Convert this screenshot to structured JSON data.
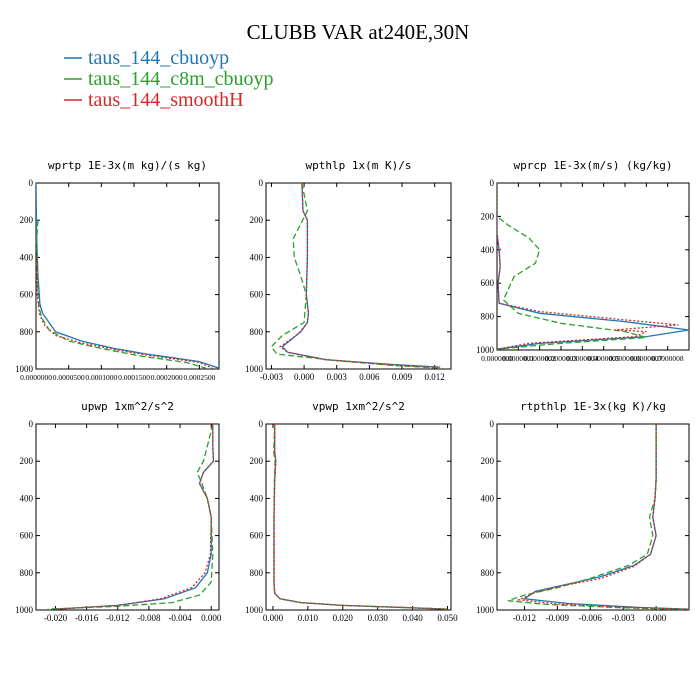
{
  "figure": {
    "title": "CLUBB VAR at240E,30N",
    "legend": [
      {
        "label": "taus_144_cbuoyp",
        "color": "#1f77b4"
      },
      {
        "label": "taus_144_c8m_cbuoyp",
        "color": "#2ca02c"
      },
      {
        "label": "taus_144_smoothH",
        "color": "#d62728"
      }
    ]
  },
  "chart_data": [
    {
      "type": "line",
      "title": "wprtp  1E-3x(m kg)/(s kg)",
      "xlim": [
        0,
        0.00028
      ],
      "ylim": [
        1000,
        0
      ],
      "yticks": [
        "0",
        "200",
        "400",
        "600",
        "800",
        "1000"
      ],
      "yticks_values": [
        0,
        200,
        400,
        600,
        800,
        1000
      ],
      "xticks": [
        "0.0000000",
        "0.0000500",
        "0.0001000",
        "0.0001500",
        "0.0002000",
        "0.0002500"
      ],
      "xticks_values": [
        0,
        5e-05,
        0.0001,
        0.00015,
        0.0002,
        0.00025
      ],
      "series": [
        {
          "name": "taus_144_cbuoyp",
          "color": "#1f77b4",
          "dash": "",
          "x": [
            0,
            1e-06,
            3e-06,
            6e-06,
            1e-05,
            3e-05,
            7e-05,
            0.00012,
            0.00017,
            0.00021,
            0.00025,
            0.00028
          ],
          "y": [
            0,
            300,
            500,
            650,
            700,
            800,
            850,
            890,
            920,
            940,
            960,
            995
          ]
        },
        {
          "name": "taus_144_c8m_cbuoyp",
          "color": "#2ca02c",
          "dash": "6,3",
          "x": [
            3e-06,
            1e-06,
            2e-06,
            4e-06,
            8e-06,
            2e-05,
            5e-05,
            0.0001,
            0.00016,
            0.0002,
            0.00023,
            0.00026
          ],
          "y": [
            200,
            300,
            500,
            650,
            720,
            790,
            850,
            890,
            930,
            950,
            965,
            995
          ]
        },
        {
          "name": "taus_144_smoothH",
          "color": "#d62728",
          "dash": "2,2",
          "x": [
            1e-06,
            2e-06,
            5e-06,
            1.2e-05,
            3e-05,
            7e-05,
            0.00012,
            0.00017,
            0.00021,
            0.00025,
            0.00027
          ],
          "y": [
            400,
            600,
            700,
            760,
            820,
            860,
            895,
            925,
            945,
            965,
            995
          ]
        }
      ]
    },
    {
      "type": "line",
      "title": "wpthlp  1x(m K)/s",
      "xlim": [
        -0.0035,
        0.0135
      ],
      "ylim": [
        1000,
        0
      ],
      "yticks": [
        "0",
        "200",
        "400",
        "600",
        "800",
        "1000"
      ],
      "yticks_values": [
        0,
        200,
        400,
        600,
        800,
        1000
      ],
      "xticks": [
        "-0.003",
        "0.000",
        "0.003",
        "0.006",
        "0.009",
        "0.012"
      ],
      "xticks_values": [
        -0.003,
        0,
        0.003,
        0.006,
        0.009,
        0.012
      ],
      "series": [
        {
          "name": "taus_144_cbuoyp",
          "color": "#1f77b4",
          "dash": "",
          "x": [
            -0.0002,
            -0.0001,
            0.0003,
            0.0003,
            0.0002,
            0.0004,
            0.0003,
            -0.0003,
            -0.002,
            -0.0015,
            0.002,
            0.008,
            0.0125
          ],
          "y": [
            0,
            150,
            200,
            400,
            600,
            700,
            750,
            800,
            880,
            910,
            950,
            975,
            990
          ]
        },
        {
          "name": "taus_144_c8m_cbuoyp",
          "color": "#2ca02c",
          "dash": "6,3",
          "x": [
            -0.0002,
            0.0003,
            -0.001,
            -0.0009,
            -0.0003,
            0.0002,
            0,
            -0.002,
            -0.003,
            -0.0025,
            0.003,
            0.008,
            0.0125
          ],
          "y": [
            0,
            150,
            300,
            400,
            500,
            600,
            750,
            820,
            880,
            920,
            955,
            980,
            995
          ]
        },
        {
          "name": "taus_144_smoothH",
          "color": "#d62728",
          "dash": "2,2",
          "x": [
            -0.0002,
            -0.0001,
            0.0003,
            0.0003,
            0.0002,
            0.0004,
            0.0003,
            -0.0005,
            -0.0022,
            -0.0015,
            0.002,
            0.008,
            0.0125
          ],
          "y": [
            0,
            150,
            200,
            400,
            600,
            700,
            750,
            810,
            880,
            910,
            950,
            978,
            993
          ]
        }
      ]
    },
    {
      "type": "line",
      "title": "wprcp  1E-3x(m/s) (kg/kg)",
      "xlim": [
        0,
        9e-07
      ],
      "ylim": [
        1000,
        0
      ],
      "yticks": [
        "0",
        "200",
        "400",
        "600",
        "800",
        "1000"
      ],
      "yticks_values": [
        0,
        200,
        400,
        600,
        800,
        1000
      ],
      "xticks": [
        "0.0000000",
        "0.0000001",
        "0.0000002",
        "0.0000003",
        "0.0000004",
        "0.0000005",
        "0.0000006",
        "0.0000007",
        "0.0000008"
      ],
      "xticks_values": [
        0,
        1e-07,
        2e-07,
        3e-07,
        4e-07,
        5e-07,
        6e-07,
        7e-07,
        8e-07
      ],
      "series": [
        {
          "name": "taus_144_cbuoyp",
          "color": "#1f77b4",
          "dash": "",
          "x": [
            0,
            0,
            1e-08,
            1.5e-08,
            5e-09,
            1e-08,
            2e-07,
            6e-07,
            9e-07,
            7e-07,
            2e-07,
            0
          ],
          "y": [
            0,
            300,
            400,
            500,
            600,
            720,
            780,
            830,
            880,
            920,
            960,
            995
          ]
        },
        {
          "name": "taus_144_c8m_cbuoyp",
          "color": "#2ca02c",
          "dash": "6,3",
          "x": [
            0,
            0,
            5e-08,
            1.5e-07,
            2e-07,
            1.8e-07,
            8e-08,
            3e-08,
            1e-07,
            3e-07,
            6e-07,
            7e-07,
            3e-07,
            0
          ],
          "y": [
            0,
            200,
            250,
            330,
            400,
            480,
            560,
            700,
            780,
            840,
            890,
            925,
            960,
            995
          ]
        },
        {
          "name": "taus_144_smoothH",
          "color": "#d62728",
          "dash": "2,2",
          "x": [
            0,
            0,
            1e-08,
            1.5e-08,
            5e-09,
            1e-08,
            2e-07,
            6e-07,
            8.5e-07,
            5.5e-07,
            7e-07,
            6.5e-07,
            1.5e-07,
            0
          ],
          "y": [
            0,
            300,
            400,
            500,
            600,
            720,
            770,
            820,
            850,
            880,
            890,
            920,
            960,
            995
          ]
        }
      ]
    },
    {
      "type": "line",
      "title": "upwp  1xm^2/s^2",
      "xlim": [
        -0.0225,
        0.001
      ],
      "ylim": [
        1000,
        0
      ],
      "yticks": [
        "0",
        "200",
        "400",
        "600",
        "800",
        "1000"
      ],
      "yticks_values": [
        0,
        200,
        400,
        600,
        800,
        1000
      ],
      "xticks": [
        "-0.020",
        "-0.016",
        "-0.012",
        "-0.008",
        "-0.004",
        "0.000"
      ],
      "xticks_values": [
        -0.02,
        -0.016,
        -0.012,
        -0.008,
        -0.004,
        0
      ],
      "series": [
        {
          "name": "taus_144_cbuoyp",
          "color": "#1f77b4",
          "dash": "",
          "x": [
            0.0002,
            0.0002,
            0.0003,
            -0.001,
            -0.0015,
            -0.0005,
            0,
            0,
            -0.0005,
            -0.002,
            -0.006,
            -0.012,
            -0.02
          ],
          "y": [
            0,
            120,
            200,
            260,
            320,
            400,
            500,
            700,
            800,
            880,
            940,
            975,
            995
          ]
        },
        {
          "name": "taus_144_c8m_cbuoyp",
          "color": "#2ca02c",
          "dash": "6,3",
          "x": [
            0.0002,
            -0.0005,
            -0.001,
            -0.0018,
            -0.0012,
            -0.0005,
            0,
            0.0002,
            0,
            -0.0015,
            -0.005,
            -0.012,
            -0.021
          ],
          "y": [
            0,
            120,
            200,
            260,
            320,
            400,
            500,
            700,
            850,
            920,
            960,
            980,
            995
          ]
        },
        {
          "name": "taus_144_smoothH",
          "color": "#d62728",
          "dash": "2,2",
          "x": [
            0.0002,
            0.0002,
            0.0003,
            -0.001,
            -0.0015,
            -0.0005,
            0,
            -0.0001,
            -0.0008,
            -0.0025,
            -0.0065,
            -0.012,
            -0.02
          ],
          "y": [
            0,
            120,
            200,
            260,
            320,
            400,
            500,
            700,
            800,
            880,
            940,
            975,
            995
          ]
        }
      ]
    },
    {
      "type": "line",
      "title": "vpwp  1xm^2/s^2",
      "xlim": [
        -0.002,
        0.051
      ],
      "ylim": [
        1000,
        0
      ],
      "yticks": [
        "0",
        "200",
        "400",
        "600",
        "800",
        "1000"
      ],
      "yticks_values": [
        0,
        200,
        400,
        600,
        800,
        1000
      ],
      "xticks": [
        "0.000",
        "0.010",
        "0.020",
        "0.030",
        "0.040",
        "0.050"
      ],
      "xticks_values": [
        0,
        0.01,
        0.02,
        0.03,
        0.04,
        0.05
      ],
      "series": [
        {
          "name": "taus_144_cbuoyp",
          "color": "#1f77b4",
          "dash": "",
          "x": [
            0.0005,
            0.0005,
            0.0008,
            0.0005,
            0.0003,
            0.0003,
            0.0003,
            0.0005,
            0.002,
            0.008,
            0.02,
            0.035,
            0.05
          ],
          "y": [
            0,
            150,
            200,
            300,
            500,
            700,
            850,
            910,
            940,
            960,
            975,
            985,
            995
          ]
        },
        {
          "name": "taus_144_c8m_cbuoyp",
          "color": "#2ca02c",
          "dash": "6,3",
          "x": [
            0.0005,
            0.0002,
            0.0006,
            0.0004,
            0.0003,
            0.0003,
            0.0003,
            0.0005,
            0.002,
            0.008,
            0.02,
            0.035,
            0.05
          ],
          "y": [
            0,
            150,
            200,
            300,
            500,
            700,
            850,
            910,
            940,
            960,
            975,
            985,
            995
          ]
        },
        {
          "name": "taus_144_smoothH",
          "color": "#d62728",
          "dash": "2,2",
          "x": [
            0.0005,
            0.0005,
            0.0008,
            0.0005,
            0.0003,
            0.0003,
            0.0003,
            0.0005,
            0.002,
            0.008,
            0.02,
            0.035,
            0.05
          ],
          "y": [
            0,
            150,
            200,
            300,
            500,
            700,
            850,
            910,
            940,
            960,
            975,
            985,
            995
          ]
        }
      ]
    },
    {
      "type": "line",
      "title": "rtpthlp  1E-3x(kg K)/kg",
      "xlim": [
        -0.0145,
        0.003
      ],
      "ylim": [
        1000,
        0
      ],
      "yticks": [
        "0",
        "200",
        "400",
        "600",
        "800",
        "1000"
      ],
      "yticks_values": [
        0,
        200,
        400,
        600,
        800,
        1000
      ],
      "xticks": [
        "-0.012",
        "-0.009",
        "-0.006",
        "-0.003",
        "0.000"
      ],
      "xticks_values": [
        -0.012,
        -0.009,
        -0.006,
        -0.003,
        0
      ],
      "series": [
        {
          "name": "taus_144_cbuoyp",
          "color": "#1f77b4",
          "dash": "",
          "x": [
            0,
            0,
            -0.0001,
            -0.0003,
            0,
            -0.0005,
            -0.002,
            -0.005,
            -0.008,
            -0.011,
            -0.012,
            -0.008,
            -0.002,
            0.003
          ],
          "y": [
            0,
            300,
            400,
            500,
            600,
            700,
            760,
            820,
            860,
            900,
            940,
            965,
            985,
            995
          ]
        },
        {
          "name": "taus_144_c8m_cbuoyp",
          "color": "#2ca02c",
          "dash": "6,3",
          "x": [
            0,
            0,
            -0.0001,
            -0.0006,
            -0.0003,
            -0.0008,
            -0.0025,
            -0.006,
            -0.009,
            -0.012,
            -0.0135,
            -0.01,
            -0.003,
            0.003
          ],
          "y": [
            0,
            300,
            400,
            500,
            600,
            700,
            760,
            830,
            880,
            920,
            950,
            970,
            988,
            998
          ]
        },
        {
          "name": "taus_144_smoothH",
          "color": "#d62728",
          "dash": "2,2",
          "x": [
            0,
            0,
            -0.0001,
            -0.0003,
            0,
            -0.0005,
            -0.002,
            -0.005,
            -0.0085,
            -0.011,
            -0.0125,
            -0.009,
            -0.002,
            0.003
          ],
          "y": [
            0,
            300,
            400,
            500,
            600,
            700,
            765,
            830,
            870,
            905,
            945,
            968,
            987,
            996
          ]
        }
      ]
    }
  ]
}
